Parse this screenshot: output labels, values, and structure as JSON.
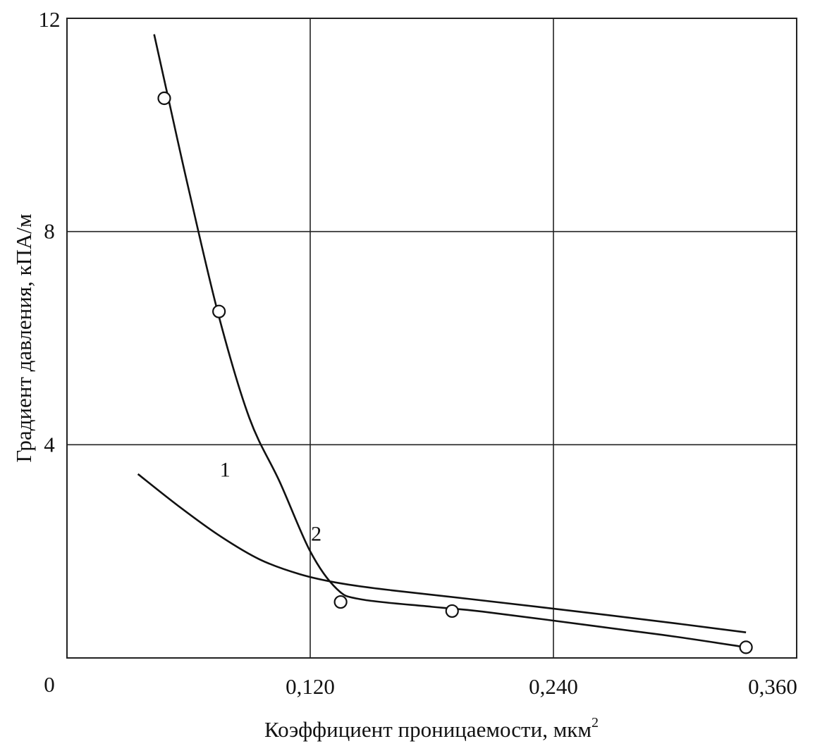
{
  "chart_data": {
    "type": "line",
    "xlabel": "Коэффициент проницаемости, мкм",
    "xlabel_sup": "2",
    "ylabel": "Градиент давления, кПА/м",
    "xlim": [
      0,
      0.36
    ],
    "ylim": [
      0,
      12
    ],
    "x_tick_labels": [
      "0,120",
      "0,240",
      "0,360"
    ],
    "x_tick_values": [
      0.12,
      0.24,
      0.36
    ],
    "y_tick_labels": [
      "0",
      "4",
      "8",
      "12"
    ],
    "y_tick_values": [
      0,
      4,
      8,
      12
    ],
    "grid": true,
    "series": [
      {
        "name": "1",
        "label_at": [
          0.078,
          3.4
        ],
        "markers": false,
        "x": [
          0.035,
          0.055,
          0.075,
          0.095,
          0.115,
          0.135,
          0.16,
          0.2,
          0.25,
          0.3,
          0.335
        ],
        "y": [
          3.45,
          2.85,
          2.3,
          1.85,
          1.57,
          1.4,
          1.27,
          1.1,
          0.88,
          0.65,
          0.48
        ]
      },
      {
        "name": "2",
        "label_at": [
          0.123,
          2.2
        ],
        "markers": true,
        "x": [
          0.043,
          0.05,
          0.06,
          0.075,
          0.09,
          0.105,
          0.12,
          0.133,
          0.145,
          0.18,
          0.205,
          0.26,
          0.3,
          0.335
        ],
        "y": [
          11.7,
          10.5,
          8.8,
          6.4,
          4.5,
          3.3,
          2.0,
          1.3,
          1.1,
          0.96,
          0.87,
          0.6,
          0.4,
          0.2
        ],
        "marker_x": [
          0.048,
          0.075,
          0.135,
          0.19,
          0.335
        ],
        "marker_y": [
          10.5,
          6.5,
          1.05,
          0.88,
          0.2
        ]
      }
    ]
  }
}
